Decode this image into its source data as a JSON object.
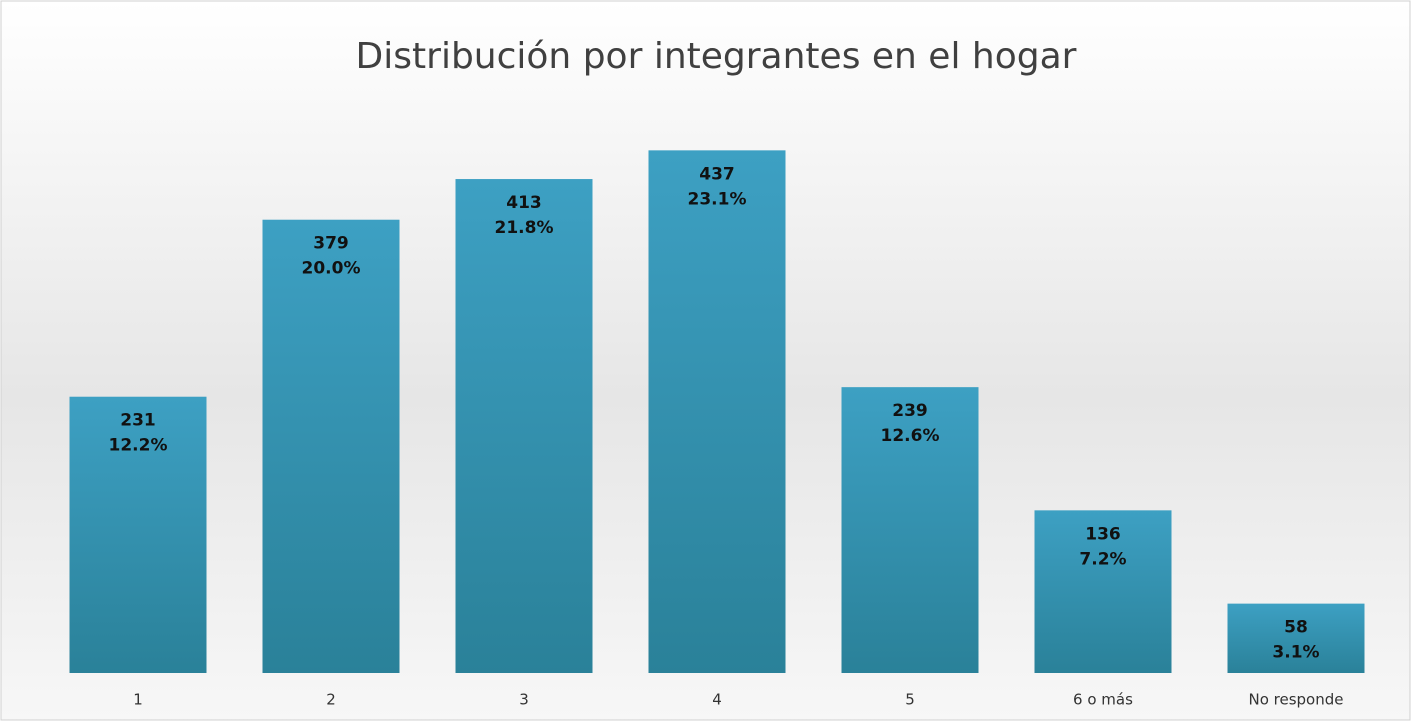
{
  "chart_data": {
    "type": "bar",
    "title": "Distribución por integrantes en el hogar",
    "categories": [
      "1",
      "2",
      "3",
      "4",
      "5",
      "6 o más",
      "No responde"
    ],
    "values": [
      231,
      379,
      413,
      437,
      239,
      136,
      58
    ],
    "percent_labels": [
      "12.2%",
      "20.0%",
      "21.8%",
      "23.1%",
      "12.6%",
      "7.2%",
      "3.1%"
    ],
    "color": "#3399bb",
    "ylim": [
      0,
      500
    ]
  }
}
